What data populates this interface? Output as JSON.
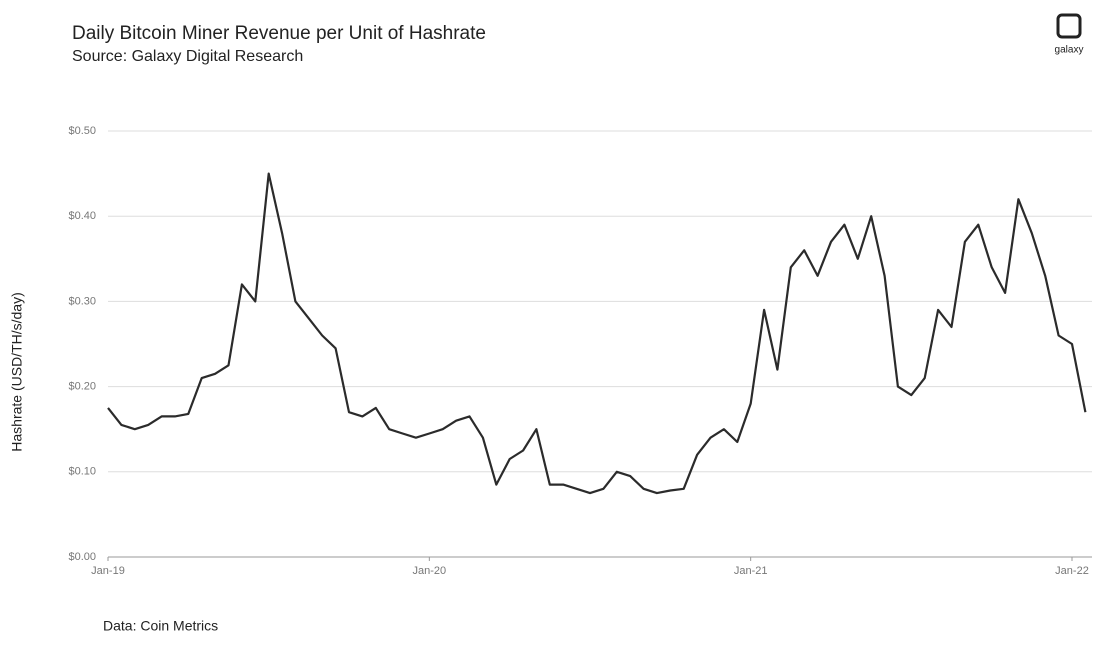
{
  "chart_data": {
    "type": "line",
    "title": "Daily Bitcoin Miner Revenue per Unit of Hashrate",
    "subtitle": "Source: Galaxy Digital Research",
    "source": "Data: Coin Metrics",
    "logo": "galaxy",
    "y_label": "Hashrate (USD/TH/s/day)",
    "color": "#2b2b2b",
    "grid": true,
    "categories": [
      "Jan-19",
      null,
      null,
      null,
      null,
      null,
      null,
      null,
      null,
      null,
      null,
      null,
      null,
      null,
      null,
      null,
      null,
      null,
      null,
      null,
      null,
      null,
      null,
      null,
      "Jan-20",
      null,
      null,
      null,
      null,
      null,
      null,
      null,
      null,
      null,
      null,
      null,
      null,
      null,
      null,
      null,
      null,
      null,
      null,
      null,
      null,
      null,
      null,
      null,
      "Jan-21",
      null,
      null,
      null,
      null,
      null,
      null,
      null,
      null,
      null,
      null,
      null,
      null,
      null,
      null,
      null,
      null,
      null,
      null,
      null,
      null,
      null,
      null,
      null,
      "Jan-22",
      null
    ],
    "values": [
      0.175,
      0.155,
      0.15,
      0.155,
      0.165,
      0.165,
      0.168,
      0.21,
      0.215,
      0.225,
      0.32,
      0.3,
      0.45,
      0.38,
      0.3,
      0.28,
      0.26,
      0.245,
      0.17,
      0.165,
      0.175,
      0.15,
      0.145,
      0.14,
      0.145,
      0.15,
      0.16,
      0.165,
      0.14,
      0.085,
      0.115,
      0.125,
      0.15,
      0.085,
      0.085,
      0.08,
      0.075,
      0.08,
      0.1,
      0.095,
      0.08,
      0.075,
      0.078,
      0.08,
      0.12,
      0.14,
      0.15,
      0.135,
      0.18,
      0.29,
      0.22,
      0.34,
      0.36,
      0.33,
      0.37,
      0.39,
      0.35,
      0.4,
      0.33,
      0.2,
      0.19,
      0.21,
      0.29,
      0.27,
      0.37,
      0.39,
      0.34,
      0.31,
      0.42,
      0.38,
      0.33,
      0.26,
      0.25,
      0.17
    ],
    "ylim": [
      0,
      0.5
    ],
    "yticks": [
      {
        "value": 0,
        "label": "$0.00"
      },
      {
        "value": 0.1,
        "label": "$0.10"
      },
      {
        "value": 0.2,
        "label": "$0.20"
      },
      {
        "value": 0.3,
        "label": "$0.30"
      },
      {
        "value": 0.4,
        "label": "$0.40"
      },
      {
        "value": 0.5,
        "label": "$0.50"
      }
    ]
  }
}
